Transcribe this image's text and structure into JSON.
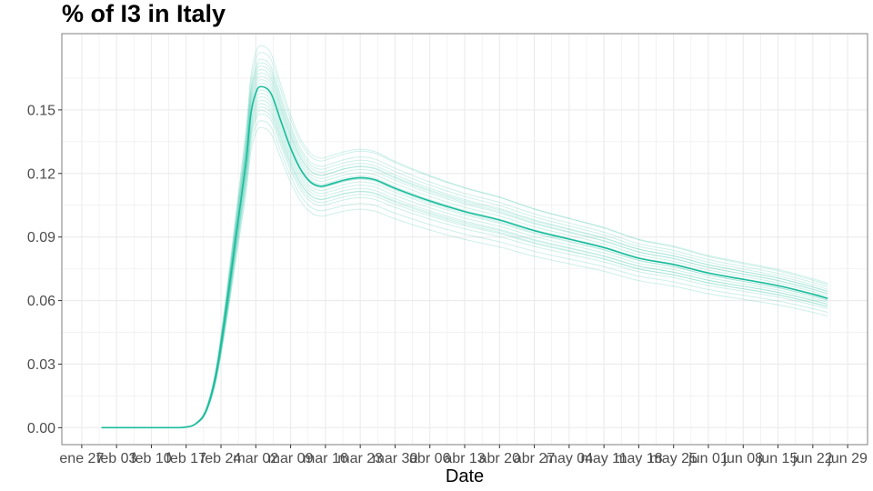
{
  "chart_data": {
    "type": "line",
    "title": "% of I3 in  Italy",
    "xlabel": "Date",
    "ylabel": "",
    "x_type": "date",
    "xlim": [
      "2020-01-23",
      "2020-07-03"
    ],
    "ylim": [
      -0.008,
      0.186
    ],
    "y_ticks": [
      0.0,
      0.03,
      0.06,
      0.09,
      0.12,
      0.15
    ],
    "y_tick_labels": [
      "0.00",
      "0.03",
      "0.06",
      "0.09",
      "0.12",
      "0.15"
    ],
    "x_ticks": [
      "2020-01-27",
      "2020-02-03",
      "2020-02-10",
      "2020-02-17",
      "2020-02-24",
      "2020-03-02",
      "2020-03-09",
      "2020-03-16",
      "2020-03-23",
      "2020-03-30",
      "2020-04-06",
      "2020-04-13",
      "2020-04-20",
      "2020-04-27",
      "2020-05-04",
      "2020-05-11",
      "2020-05-18",
      "2020-05-25",
      "2020-06-01",
      "2020-06-08",
      "2020-06-15",
      "2020-06-22",
      "2020-06-29"
    ],
    "x_tick_labels": [
      "ene 27",
      "feb 03",
      "feb 10",
      "feb 17",
      "feb 24",
      "mar 02",
      "mar 09",
      "mar 16",
      "mar 23",
      "mar 30",
      "abr 06",
      "abr 13",
      "abr 20",
      "abr 27",
      "may 04",
      "may 11",
      "may 18",
      "may 25",
      "jun 01",
      "jun 08",
      "jun 15",
      "jun 22",
      "jun 29"
    ],
    "grid": true,
    "legend": "none",
    "colors": {
      "line": "#1abc9c",
      "grid": "#ebebeb",
      "panel_border": "#7f7f7f",
      "tick_text": "#4d4d4d"
    },
    "ensemble_scales": [
      0.88,
      0.9,
      0.92,
      0.93,
      0.94,
      0.95,
      0.96,
      0.97,
      0.98,
      0.99,
      1.0,
      1.01,
      1.02,
      1.03,
      1.04,
      1.05,
      1.06,
      1.07,
      1.08,
      1.1,
      1.12
    ],
    "series": [
      {
        "x": [
          "2020-01-31",
          "2020-02-07",
          "2020-02-14",
          "2020-02-17",
          "2020-02-19",
          "2020-02-21",
          "2020-02-23",
          "2020-02-25",
          "2020-02-27",
          "2020-02-29",
          "2020-03-01",
          "2020-03-02",
          "2020-03-03",
          "2020-03-05",
          "2020-03-07",
          "2020-03-09",
          "2020-03-11",
          "2020-03-13",
          "2020-03-15",
          "2020-03-17",
          "2020-03-20",
          "2020-03-23",
          "2020-03-26",
          "2020-03-30",
          "2020-04-06",
          "2020-04-13",
          "2020-04-20",
          "2020-04-27",
          "2020-05-04",
          "2020-05-11",
          "2020-05-18",
          "2020-05-25",
          "2020-06-01",
          "2020-06-08",
          "2020-06-15",
          "2020-06-22",
          "2020-06-25"
        ],
        "y": [
          0.0,
          0.0,
          0.0,
          0.0003,
          0.002,
          0.008,
          0.025,
          0.055,
          0.09,
          0.125,
          0.148,
          0.158,
          0.161,
          0.158,
          0.145,
          0.132,
          0.122,
          0.116,
          0.114,
          0.115,
          0.117,
          0.118,
          0.117,
          0.113,
          0.107,
          0.102,
          0.098,
          0.093,
          0.089,
          0.085,
          0.08,
          0.077,
          0.073,
          0.07,
          0.067,
          0.063,
          0.061
        ]
      }
    ]
  }
}
